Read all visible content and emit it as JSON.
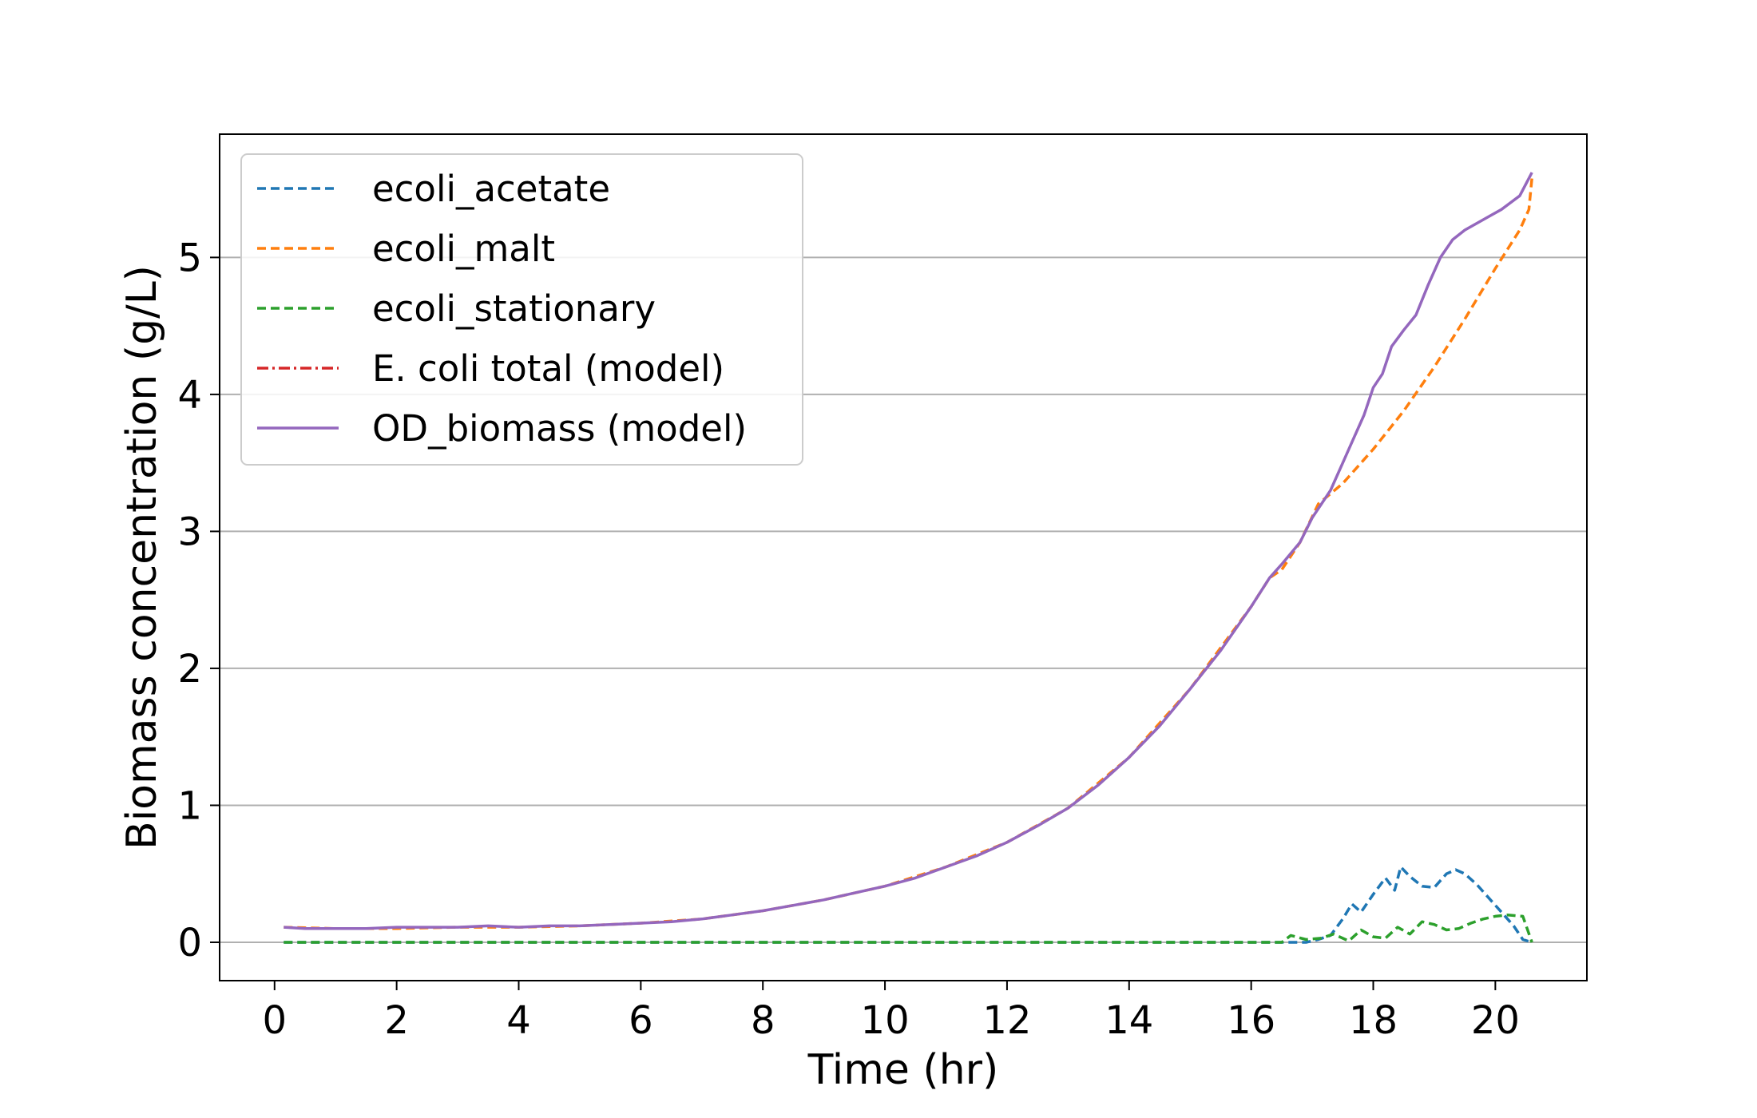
{
  "chart_data": {
    "type": "line",
    "title": "",
    "xlabel": "Time (hr)",
    "ylabel": "Biomass concentration (g/L)",
    "xlim": [
      -0.9,
      21.5
    ],
    "ylim": [
      -0.28,
      5.9
    ],
    "xticks": [
      0,
      2,
      4,
      6,
      8,
      10,
      12,
      14,
      16,
      18,
      20
    ],
    "yticks": [
      0,
      1,
      2,
      3,
      4,
      5
    ],
    "grid": "horizontal",
    "legend_position": "top-left",
    "series": [
      {
        "name": "ecoli_acetate",
        "color": "#1f77b4",
        "style": "dashed",
        "x": [
          0.15,
          2,
          4,
          6,
          8,
          10,
          12,
          14,
          16,
          16.5,
          16.9,
          17.1,
          17.3,
          17.5,
          17.65,
          17.8,
          18.0,
          18.2,
          18.35,
          18.45,
          18.6,
          18.8,
          19.0,
          19.2,
          19.35,
          19.5,
          19.7,
          19.9,
          20.1,
          20.3,
          20.45,
          20.6
        ],
        "y": [
          0.0,
          0.0,
          0.0,
          0.0,
          0.0,
          0.0,
          0.0,
          0.0,
          0.0,
          0.0,
          0.0,
          0.02,
          0.05,
          0.17,
          0.28,
          0.22,
          0.35,
          0.47,
          0.38,
          0.55,
          0.48,
          0.41,
          0.4,
          0.5,
          0.53,
          0.5,
          0.42,
          0.32,
          0.22,
          0.12,
          0.02,
          0.0
        ]
      },
      {
        "name": "ecoli_malt",
        "color": "#ff7f0e",
        "style": "dashed",
        "x": [
          0.15,
          1,
          2,
          3,
          4,
          5,
          6,
          7,
          8,
          9,
          10,
          11,
          12,
          13,
          14,
          15,
          16,
          16.3,
          16.5,
          16.8,
          17.1,
          17.5,
          18.0,
          18.5,
          19.0,
          19.5,
          20.0,
          20.4,
          20.55,
          20.6
        ],
        "y": [
          0.11,
          0.1,
          0.1,
          0.11,
          0.11,
          0.12,
          0.14,
          0.17,
          0.23,
          0.31,
          0.41,
          0.55,
          0.73,
          0.98,
          1.35,
          1.85,
          2.45,
          2.66,
          2.72,
          2.92,
          3.2,
          3.35,
          3.6,
          3.88,
          4.2,
          4.55,
          4.92,
          5.2,
          5.35,
          5.58
        ]
      },
      {
        "name": "ecoli_stationary",
        "color": "#2ca02c",
        "style": "dashed",
        "x": [
          0.15,
          2,
          4,
          6,
          8,
          10,
          12,
          14,
          16,
          16.5,
          16.65,
          16.9,
          17.15,
          17.35,
          17.6,
          17.8,
          18.0,
          18.2,
          18.4,
          18.6,
          18.8,
          19.0,
          19.2,
          19.4,
          19.6,
          19.8,
          20.0,
          20.2,
          20.45,
          20.6
        ],
        "y": [
          0.0,
          0.0,
          0.0,
          0.0,
          0.0,
          0.0,
          0.0,
          0.0,
          0.0,
          0.0,
          0.05,
          0.02,
          0.03,
          0.06,
          0.01,
          0.09,
          0.04,
          0.03,
          0.11,
          0.06,
          0.15,
          0.13,
          0.09,
          0.1,
          0.14,
          0.17,
          0.19,
          0.2,
          0.19,
          0.0
        ]
      },
      {
        "name": "E. coli total (model)",
        "color": "#d62728",
        "style": "dashdot",
        "x": [],
        "y": []
      },
      {
        "name": "OD_biomass (model)",
        "color": "#9467bd",
        "style": "solid",
        "x": [
          0.15,
          0.5,
          1,
          1.5,
          2,
          2.5,
          3,
          3.5,
          4,
          4.5,
          5,
          5.5,
          6,
          6.5,
          7,
          7.5,
          8,
          8.5,
          9,
          9.5,
          10,
          10.5,
          11,
          11.5,
          12,
          12.5,
          13,
          13.5,
          14,
          14.5,
          15,
          15.5,
          16,
          16.3,
          16.5,
          16.8,
          17.0,
          17.3,
          17.5,
          17.65,
          17.85,
          18.0,
          18.15,
          18.3,
          18.5,
          18.7,
          18.9,
          19.1,
          19.3,
          19.5,
          19.7,
          19.9,
          20.1,
          20.4,
          20.6
        ],
        "y": [
          0.11,
          0.1,
          0.1,
          0.1,
          0.11,
          0.11,
          0.11,
          0.12,
          0.11,
          0.12,
          0.12,
          0.13,
          0.14,
          0.15,
          0.17,
          0.2,
          0.23,
          0.27,
          0.31,
          0.36,
          0.41,
          0.47,
          0.55,
          0.63,
          0.73,
          0.85,
          0.98,
          1.15,
          1.35,
          1.58,
          1.85,
          2.13,
          2.45,
          2.66,
          2.76,
          2.92,
          3.1,
          3.3,
          3.5,
          3.65,
          3.85,
          4.05,
          4.15,
          4.35,
          4.47,
          4.58,
          4.8,
          5.0,
          5.13,
          5.2,
          5.25,
          5.3,
          5.35,
          5.45,
          5.62
        ]
      }
    ]
  }
}
